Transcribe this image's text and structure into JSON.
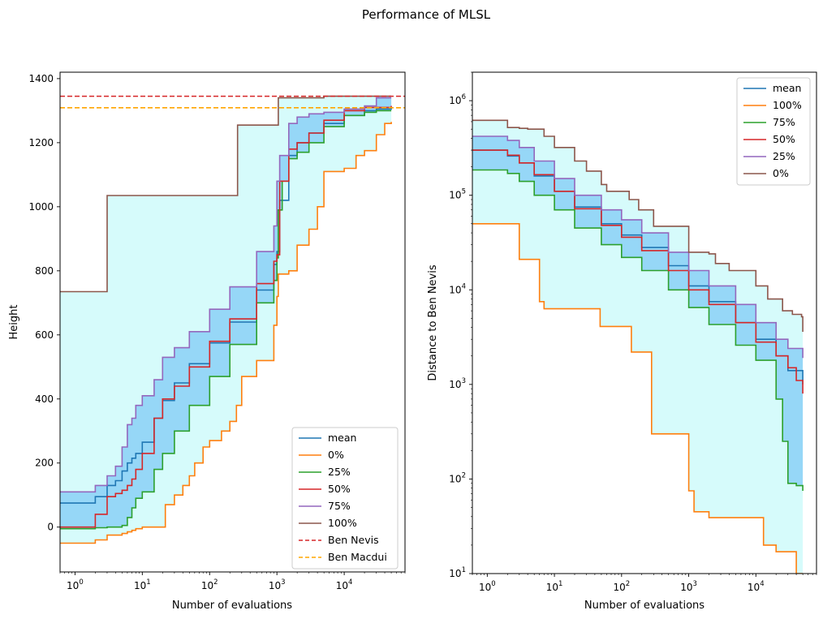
{
  "figure": {
    "suptitle": "Performance of MLSL"
  },
  "chart_data": [
    {
      "type": "line",
      "xscale": "log",
      "xlabel": "Number of evaluations",
      "ylabel": "Height",
      "xlim": [
        0.6,
        80000
      ],
      "ylim": [
        -140,
        1420
      ],
      "xticks": [
        {
          "v": 1,
          "m": "0"
        },
        {
          "v": 10,
          "m": "1"
        },
        {
          "v": 100,
          "m": "2"
        },
        {
          "v": 1000,
          "m": "3"
        },
        {
          "v": 10000,
          "m": "4"
        }
      ],
      "yticks": [
        {
          "v": 0,
          "label": "0"
        },
        {
          "v": 200,
          "label": "200"
        },
        {
          "v": 400,
          "label": "400"
        },
        {
          "v": 600,
          "label": "600"
        },
        {
          "v": 800,
          "label": "800"
        },
        {
          "v": 1000,
          "label": "1000"
        },
        {
          "v": 1200,
          "label": "1200"
        },
        {
          "v": 1400,
          "label": "1400"
        }
      ],
      "legend": {
        "position": "lower right"
      },
      "hlines": [
        {
          "name": "Ben Nevis",
          "y": 1345,
          "color": "#d62728"
        },
        {
          "name": "Ben Macdui",
          "y": 1309,
          "color": "#ffa500"
        }
      ],
      "fills": [
        {
          "between": [
            "0%",
            "100%"
          ],
          "color": "#d6fbfb"
        },
        {
          "between": [
            "25%",
            "75%"
          ],
          "color": "#96d7f7"
        }
      ],
      "series": [
        {
          "name": "mean",
          "color": "#1f77b4",
          "x": [
            0.6,
            1.0,
            2.0,
            3.0,
            4.0,
            5.0,
            6.0,
            7.0,
            8.0,
            10,
            15,
            20,
            30,
            50,
            100,
            200,
            500,
            900,
            1000,
            1100,
            1500,
            2000,
            3000,
            5000,
            10000,
            20000,
            30000,
            50000
          ],
          "y": [
            75,
            75,
            95,
            130,
            145,
            175,
            200,
            215,
            230,
            265,
            340,
            395,
            450,
            510,
            575,
            640,
            740,
            820,
            860,
            1020,
            1160,
            1200,
            1230,
            1260,
            1285,
            1300,
            1305,
            1310
          ]
        },
        {
          "name": "0%",
          "color": "#ff7f0e",
          "x": [
            0.6,
            1.0,
            2.0,
            3.0,
            5.0,
            6.0,
            7.0,
            8.0,
            10,
            20,
            22,
            30,
            40,
            50,
            60,
            80,
            100,
            150,
            200,
            250,
            300,
            500,
            900,
            1000,
            1050,
            1500,
            2000,
            3000,
            4000,
            5000,
            10000,
            15000,
            20000,
            30000,
            40000,
            50000
          ],
          "y": [
            -50,
            -50,
            -40,
            -25,
            -20,
            -15,
            -10,
            -5,
            0,
            0,
            70,
            100,
            130,
            160,
            200,
            250,
            270,
            300,
            330,
            380,
            470,
            520,
            630,
            720,
            790,
            800,
            880,
            930,
            1000,
            1110,
            1120,
            1160,
            1175,
            1225,
            1260,
            1265
          ]
        },
        {
          "name": "25%",
          "color": "#2ca02c",
          "x": [
            0.6,
            1.0,
            2.0,
            3.0,
            4.0,
            5.0,
            6.0,
            7.0,
            8.0,
            10,
            15,
            20,
            30,
            50,
            100,
            200,
            500,
            900,
            1000,
            1050,
            1200,
            1500,
            2000,
            3000,
            5000,
            10000,
            20000,
            30000,
            50000
          ],
          "y": [
            -5,
            -5,
            -2,
            0,
            0,
            5,
            30,
            60,
            90,
            110,
            180,
            230,
            300,
            380,
            470,
            570,
            700,
            770,
            840,
            990,
            1080,
            1150,
            1170,
            1200,
            1250,
            1285,
            1295,
            1300,
            1300
          ]
        },
        {
          "name": "50%",
          "color": "#d62728",
          "x": [
            0.6,
            1.0,
            2.0,
            3.0,
            4.0,
            5.0,
            6.0,
            7.0,
            8.0,
            10,
            15,
            20,
            30,
            50,
            100,
            200,
            500,
            900,
            1000,
            1100,
            1500,
            2000,
            3000,
            5000,
            10000,
            20000,
            50000
          ],
          "y": [
            0,
            0,
            40,
            95,
            105,
            115,
            130,
            150,
            180,
            230,
            340,
            400,
            440,
            500,
            580,
            650,
            760,
            830,
            850,
            1080,
            1180,
            1200,
            1230,
            1270,
            1300,
            1310,
            1315
          ]
        },
        {
          "name": "75%",
          "color": "#9467bd",
          "x": [
            0.6,
            1.0,
            2.0,
            3.0,
            4.0,
            5.0,
            6.0,
            7.0,
            8.0,
            10,
            15,
            20,
            30,
            50,
            100,
            200,
            500,
            900,
            1000,
            1100,
            1500,
            2000,
            3000,
            5000,
            10000,
            20000,
            30000,
            50000
          ],
          "y": [
            110,
            110,
            130,
            160,
            190,
            250,
            320,
            340,
            380,
            410,
            460,
            530,
            560,
            610,
            680,
            750,
            860,
            940,
            1080,
            1160,
            1260,
            1280,
            1290,
            1295,
            1305,
            1315,
            1340,
            1340
          ]
        },
        {
          "name": "100%",
          "color": "#8c564b",
          "x": [
            0.6,
            2.0,
            3.0,
            170,
            260,
            1000,
            1050,
            3000,
            5000,
            50000
          ],
          "y": [
            735,
            735,
            1035,
            1035,
            1255,
            1255,
            1340,
            1340,
            1345,
            1345
          ]
        }
      ]
    },
    {
      "type": "line",
      "xscale": "log",
      "yscale": "log",
      "xlabel": "Number of evaluations",
      "ylabel": "Distance to Ben Nevis",
      "xlim": [
        0.6,
        80000
      ],
      "ylim": [
        10,
        2000000
      ],
      "xticks": [
        {
          "v": 1,
          "m": "0"
        },
        {
          "v": 10,
          "m": "1"
        },
        {
          "v": 100,
          "m": "2"
        },
        {
          "v": 1000,
          "m": "3"
        },
        {
          "v": 10000,
          "m": "4"
        }
      ],
      "yticks": [
        {
          "v": 10,
          "m": "1"
        },
        {
          "v": 100,
          "m": "2"
        },
        {
          "v": 1000,
          "m": "3"
        },
        {
          "v": 10000,
          "m": "4"
        },
        {
          "v": 100000,
          "m": "5"
        },
        {
          "v": 1000000,
          "m": "6"
        }
      ],
      "legend": {
        "position": "upper right"
      },
      "fills": [
        {
          "between": [
            "100%",
            "0%"
          ],
          "color": "#d6fbfb"
        },
        {
          "between": [
            "75%",
            "25%"
          ],
          "color": "#96d7f7"
        }
      ],
      "series": [
        {
          "name": "mean",
          "color": "#1f77b4",
          "x": [
            0.6,
            1.0,
            2.0,
            3.0,
            5.0,
            10,
            20,
            50,
            100,
            200,
            500,
            1000,
            2000,
            5000,
            10000,
            20000,
            30000,
            50000
          ],
          "y": [
            300000,
            300000,
            260000,
            220000,
            160000,
            110000,
            75000,
            50000,
            38000,
            28000,
            18000,
            11000,
            7500,
            4500,
            3000,
            2000,
            1400,
            1000
          ]
        },
        {
          "name": "100%",
          "color": "#ff7f0e",
          "x": [
            0.6,
            2.0,
            3.0,
            6.0,
            7.0,
            48,
            140,
            280,
            1000,
            1200,
            2000,
            13000,
            20000,
            40000,
            50000
          ],
          "y": [
            50000,
            50000,
            21000,
            7500,
            6300,
            4100,
            2200,
            300,
            75,
            45,
            39,
            20,
            17,
            10,
            10
          ]
        },
        {
          "name": "75%",
          "color": "#2ca02c",
          "x": [
            0.6,
            1.0,
            2.0,
            3.0,
            5.0,
            10,
            20,
            50,
            100,
            200,
            500,
            1000,
            2000,
            5000,
            10000,
            20000,
            25000,
            30000,
            40000,
            50000
          ],
          "y": [
            185000,
            185000,
            170000,
            140000,
            100000,
            70000,
            45000,
            30000,
            22000,
            16000,
            10000,
            6500,
            4300,
            2600,
            1800,
            700,
            250,
            90,
            85,
            75
          ]
        },
        {
          "name": "50%",
          "color": "#d62728",
          "x": [
            0.6,
            1.0,
            2.0,
            3.0,
            5.0,
            10,
            20,
            50,
            100,
            200,
            500,
            1000,
            2000,
            5000,
            10000,
            20000,
            30000,
            40000,
            50000
          ],
          "y": [
            300000,
            300000,
            265000,
            220000,
            165000,
            110000,
            72000,
            48000,
            36000,
            26000,
            16000,
            10000,
            7000,
            4500,
            2800,
            2000,
            1500,
            1100,
            800
          ]
        },
        {
          "name": "25%",
          "color": "#9467bd",
          "x": [
            0.6,
            1.0,
            2.0,
            3.0,
            5.0,
            10,
            20,
            50,
            100,
            200,
            500,
            1000,
            2000,
            5000,
            10000,
            20000,
            30000,
            50000
          ],
          "y": [
            420000,
            420000,
            380000,
            320000,
            230000,
            150000,
            100000,
            70000,
            55000,
            40000,
            25000,
            16000,
            11000,
            7000,
            4500,
            3000,
            2400,
            1900
          ]
        },
        {
          "name": "0%",
          "color": "#8c564b",
          "x": [
            0.6,
            1.0,
            2.0,
            3.0,
            4.0,
            7.0,
            10,
            20,
            30,
            50,
            60,
            130,
            180,
            300,
            500,
            900,
            1000,
            2000,
            2500,
            4000,
            6000,
            10000,
            15000,
            25000,
            35000,
            48000,
            50000
          ],
          "y": [
            620000,
            620000,
            520000,
            510000,
            500000,
            420000,
            320000,
            230000,
            180000,
            130000,
            110000,
            90000,
            70000,
            47000,
            47000,
            47000,
            25000,
            24000,
            19000,
            16000,
            16000,
            11000,
            8000,
            6000,
            5500,
            5200,
            3600
          ]
        }
      ]
    }
  ]
}
